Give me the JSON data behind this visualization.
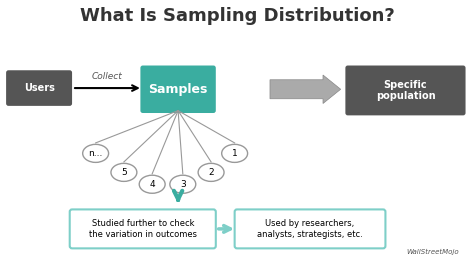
{
  "title": "What Is Sampling Distribution?",
  "title_fontsize": 13,
  "title_color": "#333333",
  "bg_color": "#ffffff",
  "teal_color": "#3aada0",
  "teal_light": "#7ecfc8",
  "dark_gray": "#555555",
  "medium_gray": "#888888",
  "light_teal_box": "#a8d8d4",
  "users_label": "Users",
  "collect_label": "Collect",
  "samples_label": "Samples",
  "population_label": "Specific\npopulation",
  "studied_label": "Studied further to check\nthe variation in outcomes",
  "used_label": "Used by researchers,\nanalysts, strategists, etc.",
  "sample_labels": [
    "n...",
    "5",
    "4",
    "3",
    "2",
    "1"
  ],
  "watermark": "WallStreetMojo"
}
